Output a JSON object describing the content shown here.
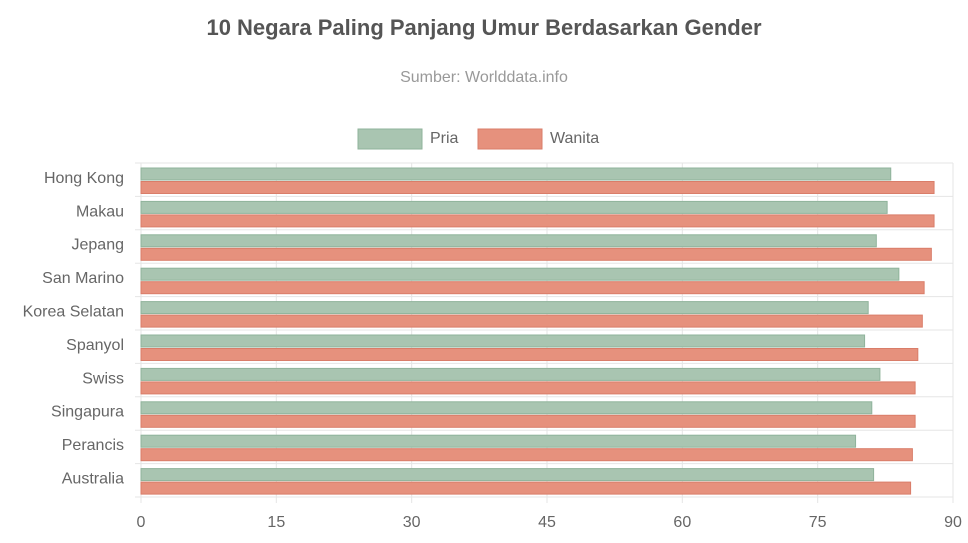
{
  "chart_data": {
    "type": "hbar",
    "title": "10 Negara Paling Panjang Umur Berdasarkan Gender",
    "subtitle": "Sumber: Worlddata.info",
    "categories": [
      "Hong Kong",
      "Makau",
      "Jepang",
      "San Marino",
      "Korea Selatan",
      "Spanyol",
      "Swiss",
      "Singapura",
      "Perancis",
      "Australia"
    ],
    "series": [
      {
        "name": "Pria",
        "color": "#a9c5b1",
        "border": "#8fb39b",
        "values": [
          83.1,
          82.7,
          81.5,
          84.0,
          80.6,
          80.2,
          81.9,
          81.0,
          79.2,
          81.2
        ]
      },
      {
        "name": "Wanita",
        "color": "#e6917d",
        "border": "#d97d69",
        "values": [
          87.9,
          87.9,
          87.6,
          86.8,
          86.6,
          86.1,
          85.8,
          85.8,
          85.5,
          85.3
        ]
      }
    ],
    "xlim": [
      0,
      90
    ],
    "xticks": [
      0,
      15,
      30,
      45,
      60,
      75,
      90
    ],
    "grid": true,
    "legend": "top"
  }
}
